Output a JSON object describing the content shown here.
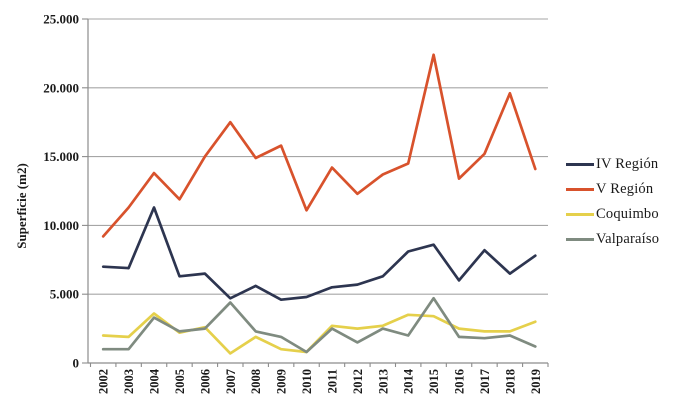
{
  "chart_data": {
    "type": "line",
    "title": "",
    "xlabel": "",
    "ylabel": "Superficie (m2)",
    "ylim": [
      0,
      25000
    ],
    "y_tick_labels": [
      "25.000",
      "20.000",
      "15.000",
      "10.000",
      "5.000",
      "0"
    ],
    "y_tick_values": [
      25000,
      20000,
      15000,
      10000,
      5000,
      0
    ],
    "grid": true,
    "legend_position": "right",
    "categories": [
      "2002",
      "2003",
      "2004",
      "2005",
      "2006",
      "2007",
      "2008",
      "2009",
      "2010",
      "2011",
      "2012",
      "2013",
      "2014",
      "2015",
      "2016",
      "2017",
      "2018",
      "2019"
    ],
    "series": [
      {
        "id": "iv-region",
        "name": "IV Región",
        "color": "#2d3550",
        "values": [
          7000,
          6900,
          11300,
          6300,
          6500,
          4700,
          5600,
          4600,
          4800,
          5500,
          5700,
          6300,
          8100,
          8600,
          6000,
          8200,
          6500,
          7800
        ]
      },
      {
        "id": "v-region",
        "name": "V Región",
        "color": "#d8522c",
        "values": [
          9200,
          11300,
          13800,
          11900,
          15000,
          17500,
          14900,
          15800,
          11100,
          14200,
          12300,
          13700,
          14500,
          22400,
          13400,
          15200,
          19600,
          14100
        ]
      },
      {
        "id": "coquimbo",
        "name": "Coquimbo",
        "color": "#e5d04b",
        "values": [
          2000,
          1900,
          3600,
          2200,
          2600,
          700,
          1900,
          1000,
          800,
          2700,
          2500,
          2700,
          3500,
          3400,
          2500,
          2300,
          2300,
          3000
        ]
      },
      {
        "id": "valparaiso",
        "name": "Valparaíso",
        "color": "#7f8b80",
        "values": [
          1000,
          1000,
          3300,
          2300,
          2500,
          4400,
          2300,
          1900,
          800,
          2500,
          1500,
          2500,
          2000,
          4700,
          1900,
          1800,
          2000,
          1200
        ]
      }
    ],
    "colors": {
      "grid": "#a6a6a6",
      "axis": "#8c8c8c",
      "text": "#1a1a1a"
    }
  }
}
